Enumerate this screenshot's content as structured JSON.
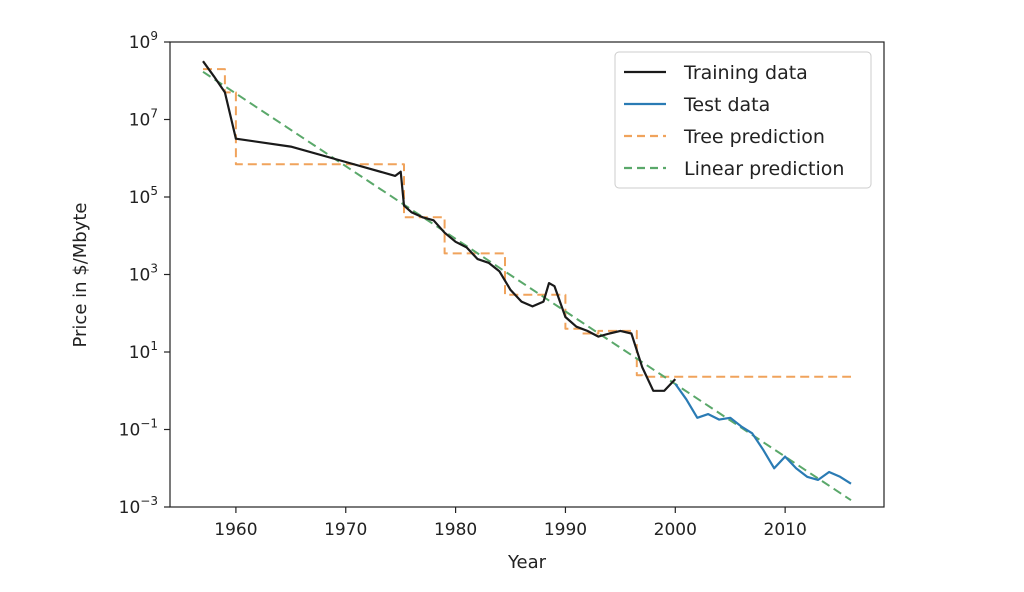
{
  "chart_data": {
    "type": "line",
    "title": "",
    "xlabel": "Year",
    "ylabel": "Price in $/Mbyte",
    "xlim": [
      1954,
      2019
    ],
    "ylim": [
      0.001,
      1000000000
    ],
    "yscale": "log",
    "grid": false,
    "legend_position": "top-right",
    "x_ticks": [
      {
        "value": 1960,
        "label": "1960"
      },
      {
        "value": 1970,
        "label": "1970"
      },
      {
        "value": 1980,
        "label": "1980"
      },
      {
        "value": 1990,
        "label": "1990"
      },
      {
        "value": 2000,
        "label": "2000"
      },
      {
        "value": 2010,
        "label": "2010"
      }
    ],
    "y_ticks": [
      {
        "value": 0.001,
        "base": "10",
        "exp": "−3"
      },
      {
        "value": 0.1,
        "base": "10",
        "exp": "−1"
      },
      {
        "value": 10,
        "base": "10",
        "exp": "1"
      },
      {
        "value": 1000,
        "base": "10",
        "exp": "3"
      },
      {
        "value": 100000,
        "base": "10",
        "exp": "5"
      },
      {
        "value": 10000000,
        "base": "10",
        "exp": "7"
      },
      {
        "value": 1000000000,
        "base": "10",
        "exp": "9"
      }
    ],
    "series": [
      {
        "name": "Training data",
        "color": "#1a1a1a",
        "style": "solid",
        "x": [
          1957,
          1958,
          1959,
          1960,
          1965,
          1970,
          1974.5,
          1975,
          1975.3,
          1976,
          1977,
          1978,
          1979,
          1980,
          1981,
          1982,
          1983,
          1984,
          1985,
          1986,
          1987,
          1988,
          1988.5,
          1989,
          1990,
          1991,
          1992,
          1993,
          1994,
          1995,
          1996,
          1997,
          1998,
          1999,
          2000
        ],
        "y": [
          320000000,
          130000000,
          50000000,
          3200000,
          2000000,
          800000,
          350000,
          450000,
          60000,
          40000,
          30000,
          25000,
          12000,
          7000,
          5000,
          2500,
          2000,
          1200,
          400,
          200,
          150,
          200,
          600,
          500,
          80,
          45,
          35,
          25,
          30,
          35,
          30,
          4,
          1,
          1,
          2
        ]
      },
      {
        "name": "Test data",
        "color": "#2a7bb4",
        "style": "solid",
        "x": [
          2000,
          2001,
          2002,
          2003,
          2004,
          2005,
          2006,
          2007,
          2008,
          2009,
          2010,
          2011,
          2012,
          2013,
          2014,
          2015,
          2016
        ],
        "y": [
          1.5,
          0.6,
          0.2,
          0.25,
          0.18,
          0.2,
          0.12,
          0.08,
          0.03,
          0.01,
          0.02,
          0.01,
          0.006,
          0.005,
          0.008,
          0.006,
          0.004
        ]
      },
      {
        "name": "Tree prediction",
        "color": "#f0a35c",
        "style": "dashed",
        "x": [
          1957,
          1959,
          1959,
          1960,
          1960,
          1975.3,
          1975.3,
          1979,
          1979,
          1984.5,
          1984.5,
          1990,
          1990,
          1991.5,
          1991.5,
          1993,
          1993,
          1996.5,
          1996.5,
          1997,
          1997,
          2016
        ],
        "y": [
          200000000,
          200000000,
          50000000,
          50000000,
          700000,
          700000,
          30000,
          30000,
          3500,
          3500,
          300,
          300,
          40,
          40,
          30,
          30,
          35,
          35,
          2.5,
          2.5,
          2.3,
          2.3
        ]
      },
      {
        "name": "Linear prediction",
        "color": "#5aa86a",
        "style": "dashed",
        "x": [
          1957,
          2016
        ],
        "y": [
          170000000,
          0.0015
        ]
      }
    ]
  }
}
